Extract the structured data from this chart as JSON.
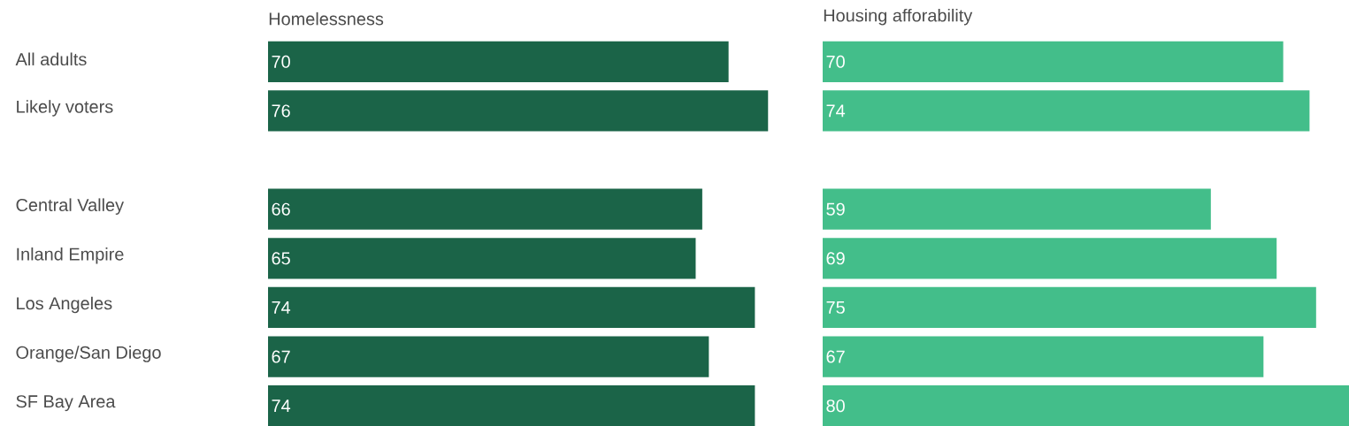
{
  "chart_data": [
    {
      "type": "bar",
      "orientation": "horizontal",
      "title": "Homelessness",
      "categories": [
        "All adults",
        "Likely voters",
        null,
        "Central Valley",
        "Inland Empire",
        "Los Angeles",
        "Orange/San Diego",
        "SF Bay Area"
      ],
      "values": [
        70,
        76,
        null,
        66,
        65,
        74,
        67,
        74
      ],
      "color": "#1b6448",
      "data_labels": true,
      "tick_labels": "y"
    },
    {
      "type": "bar",
      "orientation": "horizontal",
      "title": "Housing afforability",
      "values": [
        70,
        74,
        null,
        59,
        69,
        75,
        67,
        80
      ],
      "color": "#43be8a",
      "data_labels": true,
      "tick_labels": false
    }
  ]
}
